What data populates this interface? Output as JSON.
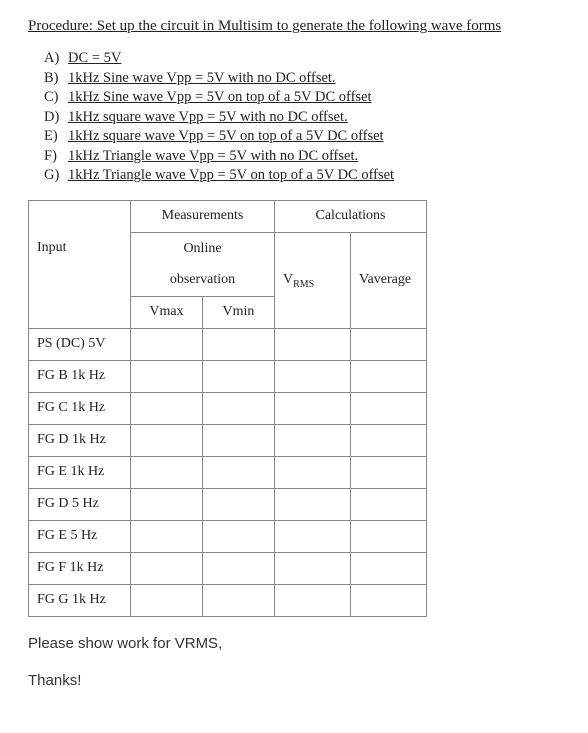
{
  "procedure_title": "Procedure:  Set up the circuit in Multisim to generate the following wave forms",
  "list": [
    {
      "letter": "A)",
      "text": "DC = 5V"
    },
    {
      "letter": "B)",
      "text": "1kHz Sine wave Vpp = 5V with no DC offset."
    },
    {
      "letter": "C)",
      "text": "1kHz Sine wave Vpp = 5V on top of a 5V DC offset"
    },
    {
      "letter": "D)",
      "text": "1kHz square wave Vpp = 5V with no DC offset."
    },
    {
      "letter": "E)",
      "text": "1kHz square wave Vpp = 5V on top of a 5V DC offset"
    },
    {
      "letter": "F)",
      "text": "1kHz Triangle wave Vpp = 5V with no DC offset."
    },
    {
      "letter": "G)",
      "text": "1kHz Triangle wave Vpp = 5V on top of a 5V DC offset"
    }
  ],
  "table": {
    "headers": {
      "measurements": "Measurements",
      "calculations": "Calculations",
      "input": "Input",
      "online": "Online",
      "observation": "observation",
      "vmax": "Vmax",
      "vmin": "Vmin",
      "vrms_prefix": "V",
      "vrms_sub": "RMS",
      "vaverage": "Vaverage"
    },
    "rows": [
      {
        "label": "PS (DC) 5V"
      },
      {
        "label": "FG B 1k Hz"
      },
      {
        "label": "FG C 1k Hz"
      },
      {
        "label": "FG D 1k Hz"
      },
      {
        "label": "FG E 1k Hz"
      },
      {
        "label": "FG D 5 Hz"
      },
      {
        "label": "FG E 5 Hz"
      },
      {
        "label": "FG F 1k Hz"
      },
      {
        "label": "FG G 1k Hz"
      }
    ]
  },
  "note": "Please show work for VRMS,",
  "thanks": "Thanks!"
}
